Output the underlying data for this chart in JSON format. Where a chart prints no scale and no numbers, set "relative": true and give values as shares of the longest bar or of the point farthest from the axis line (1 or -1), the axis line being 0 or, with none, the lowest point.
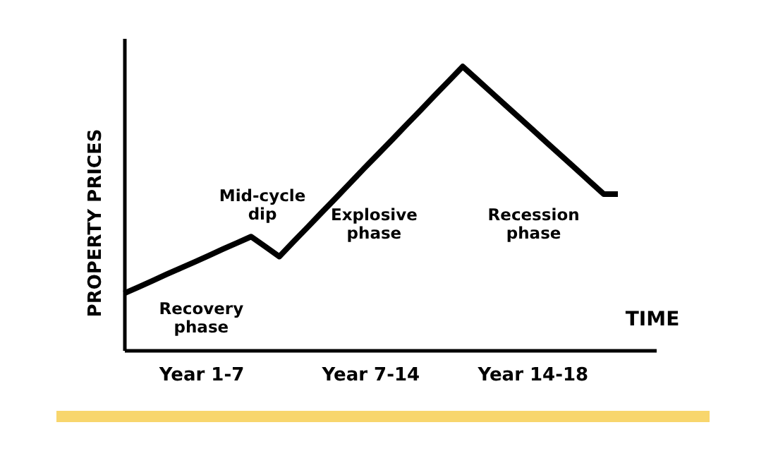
{
  "chart_data": {
    "type": "line",
    "relative": true,
    "xlabel": "TIME",
    "ylabel": "PROPERTY PRICES",
    "categories": [
      null,
      null,
      null,
      null,
      null,
      null,
      null,
      null,
      null,
      null,
      null,
      null,
      null,
      null,
      null,
      null,
      null,
      null,
      null,
      null,
      null,
      null,
      null,
      null,
      null,
      null,
      null,
      null,
      null,
      null,
      null,
      null,
      null,
      null,
      null,
      null
    ],
    "series": [
      {
        "color": "#000000",
        "values": [
          0.2,
          0.222,
          0.244,
          0.267,
          0.289,
          0.311,
          0.333,
          0.356,
          0.378,
          0.4,
          0.365,
          0.33,
          0.382,
          0.433,
          0.485,
          0.536,
          0.588,
          0.64,
          0.691,
          0.742,
          0.794,
          0.845,
          0.897,
          0.948,
          1,
          0.955,
          0.91,
          0.865,
          0.82,
          0.775,
          0.73,
          0.685,
          0.64,
          0.595,
          0.55,
          0.55
        ]
      }
    ],
    "annotations": [
      "Recovery phase",
      "Mid-cycle dip",
      "Explosive phase",
      "Recession phase",
      "Year 1-7",
      "Year 7-14",
      "Year 14-18"
    ],
    "grid": false,
    "marker": "none",
    "line_style": "solid"
  }
}
